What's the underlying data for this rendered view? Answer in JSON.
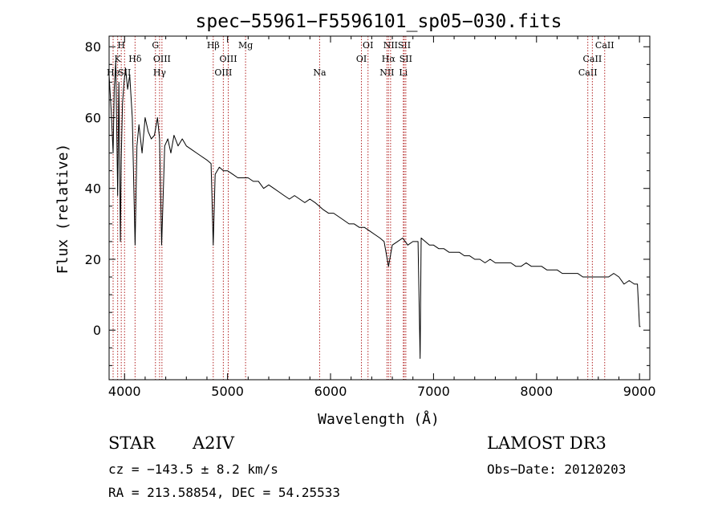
{
  "chart_data": {
    "type": "line",
    "title": "spec−55961−F5596101_sp05−030.fits",
    "xlabel": "Wavelength (Å)",
    "ylabel": "Flux (relative)",
    "xlim": [
      3850,
      9100
    ],
    "ylim": [
      -14,
      83
    ],
    "grid": false,
    "x_ticks": [
      {
        "value": 4000,
        "label": "4000"
      },
      {
        "value": 5000,
        "label": "5000"
      },
      {
        "value": 6000,
        "label": "6000"
      },
      {
        "value": 7000,
        "label": "7000"
      },
      {
        "value": 8000,
        "label": "8000"
      },
      {
        "value": 9000,
        "label": "9000"
      }
    ],
    "y_ticks": [
      {
        "value": 0,
        "label": "0"
      },
      {
        "value": 20,
        "label": "20"
      },
      {
        "value": 40,
        "label": "40"
      },
      {
        "value": 60,
        "label": "60"
      },
      {
        "value": 80,
        "label": "80"
      }
    ],
    "series": [
      {
        "name": "flux",
        "x": [
          3850,
          3870,
          3889,
          3900,
          3915,
          3933,
          3945,
          3960,
          3968,
          3980,
          3995,
          4010,
          4030,
          4050,
          4075,
          4102,
          4120,
          4140,
          4170,
          4200,
          4230,
          4260,
          4290,
          4320,
          4340,
          4360,
          4390,
          4420,
          4450,
          4480,
          4520,
          4560,
          4600,
          4650,
          4700,
          4750,
          4800,
          4840,
          4861,
          4880,
          4920,
          4960,
          5000,
          5050,
          5100,
          5150,
          5200,
          5250,
          5300,
          5350,
          5400,
          5450,
          5500,
          5550,
          5600,
          5650,
          5700,
          5750,
          5800,
          5850,
          5890,
          5930,
          5980,
          6030,
          6080,
          6130,
          6180,
          6230,
          6280,
          6330,
          6380,
          6430,
          6480,
          6520,
          6563,
          6600,
          6650,
          6700,
          6750,
          6800,
          6850,
          6870,
          6880,
          6920,
          6960,
          7000,
          7050,
          7100,
          7150,
          7200,
          7250,
          7300,
          7350,
          7400,
          7450,
          7500,
          7550,
          7600,
          7650,
          7700,
          7750,
          7800,
          7850,
          7900,
          7950,
          8000,
          8050,
          8100,
          8150,
          8200,
          8250,
          8300,
          8350,
          8400,
          8450,
          8500,
          8550,
          8600,
          8650,
          8700,
          8750,
          8800,
          8850,
          8900,
          8950,
          8980,
          9000,
          9010
        ],
        "y": [
          72,
          62,
          50,
          68,
          76,
          38,
          70,
          25,
          48,
          64,
          70,
          74,
          68,
          72,
          60,
          24,
          52,
          58,
          50,
          60,
          56,
          54,
          55,
          60,
          54,
          24,
          52,
          54,
          50,
          55,
          52,
          54,
          52,
          51,
          50,
          49,
          48,
          47,
          24,
          44,
          46,
          45,
          45,
          44,
          43,
          43,
          43,
          42,
          42,
          40,
          41,
          40,
          39,
          38,
          37,
          38,
          37,
          36,
          37,
          36,
          35,
          34,
          33,
          33,
          32,
          31,
          30,
          30,
          29,
          29,
          28,
          27,
          26,
          25,
          18,
          24,
          25,
          26,
          24,
          25,
          25,
          -8,
          26,
          25,
          24,
          24,
          23,
          23,
          22,
          22,
          22,
          21,
          21,
          20,
          20,
          19,
          20,
          19,
          19,
          19,
          19,
          18,
          18,
          19,
          18,
          18,
          18,
          17,
          17,
          17,
          16,
          16,
          16,
          16,
          15,
          15,
          15,
          15,
          15,
          15,
          16,
          15,
          13,
          14,
          13,
          13,
          1,
          1
        ]
      }
    ],
    "lines": [
      {
        "x": 3889,
        "label": "He",
        "row": 2
      },
      {
        "x": 3933,
        "label": "K",
        "row": 1
      },
      {
        "x": 3968,
        "label": "H",
        "row": 0
      },
      {
        "x": 4000,
        "label": "SII",
        "row": 2
      },
      {
        "x": 4102,
        "label": "Hδ",
        "row": 1
      },
      {
        "x": 4300,
        "label": "G",
        "row": 0
      },
      {
        "x": 4340,
        "label": "Hγ",
        "row": 2
      },
      {
        "x": 4363,
        "label": "OIII",
        "row": 1
      },
      {
        "x": 4861,
        "label": "Hβ",
        "row": 0
      },
      {
        "x": 4959,
        "label": "OIII",
        "row": 2
      },
      {
        "x": 5007,
        "label": "OIII",
        "row": 1
      },
      {
        "x": 5175,
        "label": "Mg",
        "row": 0
      },
      {
        "x": 5894,
        "label": "Na",
        "row": 2
      },
      {
        "x": 6300,
        "label": "OI",
        "row": 1
      },
      {
        "x": 6364,
        "label": "OI",
        "row": 0
      },
      {
        "x": 6548,
        "label": "NII",
        "row": 2
      },
      {
        "x": 6563,
        "label": "Hα",
        "row": 1
      },
      {
        "x": 6583,
        "label": "NII",
        "row": 0
      },
      {
        "x": 6707,
        "label": "Li",
        "row": 2
      },
      {
        "x": 6716,
        "label": "SII",
        "row": 0
      },
      {
        "x": 6731,
        "label": "SII",
        "row": 1
      },
      {
        "x": 8498,
        "label": "CaII",
        "row": 2
      },
      {
        "x": 8542,
        "label": "CaII",
        "row": 1
      },
      {
        "x": 8662,
        "label": "CaII",
        "row": 0
      }
    ]
  },
  "info": {
    "class_label": "STAR",
    "subclass": "A2IV",
    "survey": "LAMOST  DR3",
    "cz": "cz = −143.5 ± 8.2 km/s",
    "obs_date": "Obs−Date: 20120203",
    "coords": "RA = 213.58854, DEC =  54.25533"
  },
  "colors": {
    "spectrum": "#000000",
    "line_marker": "#b22222",
    "axis": "#000000"
  }
}
